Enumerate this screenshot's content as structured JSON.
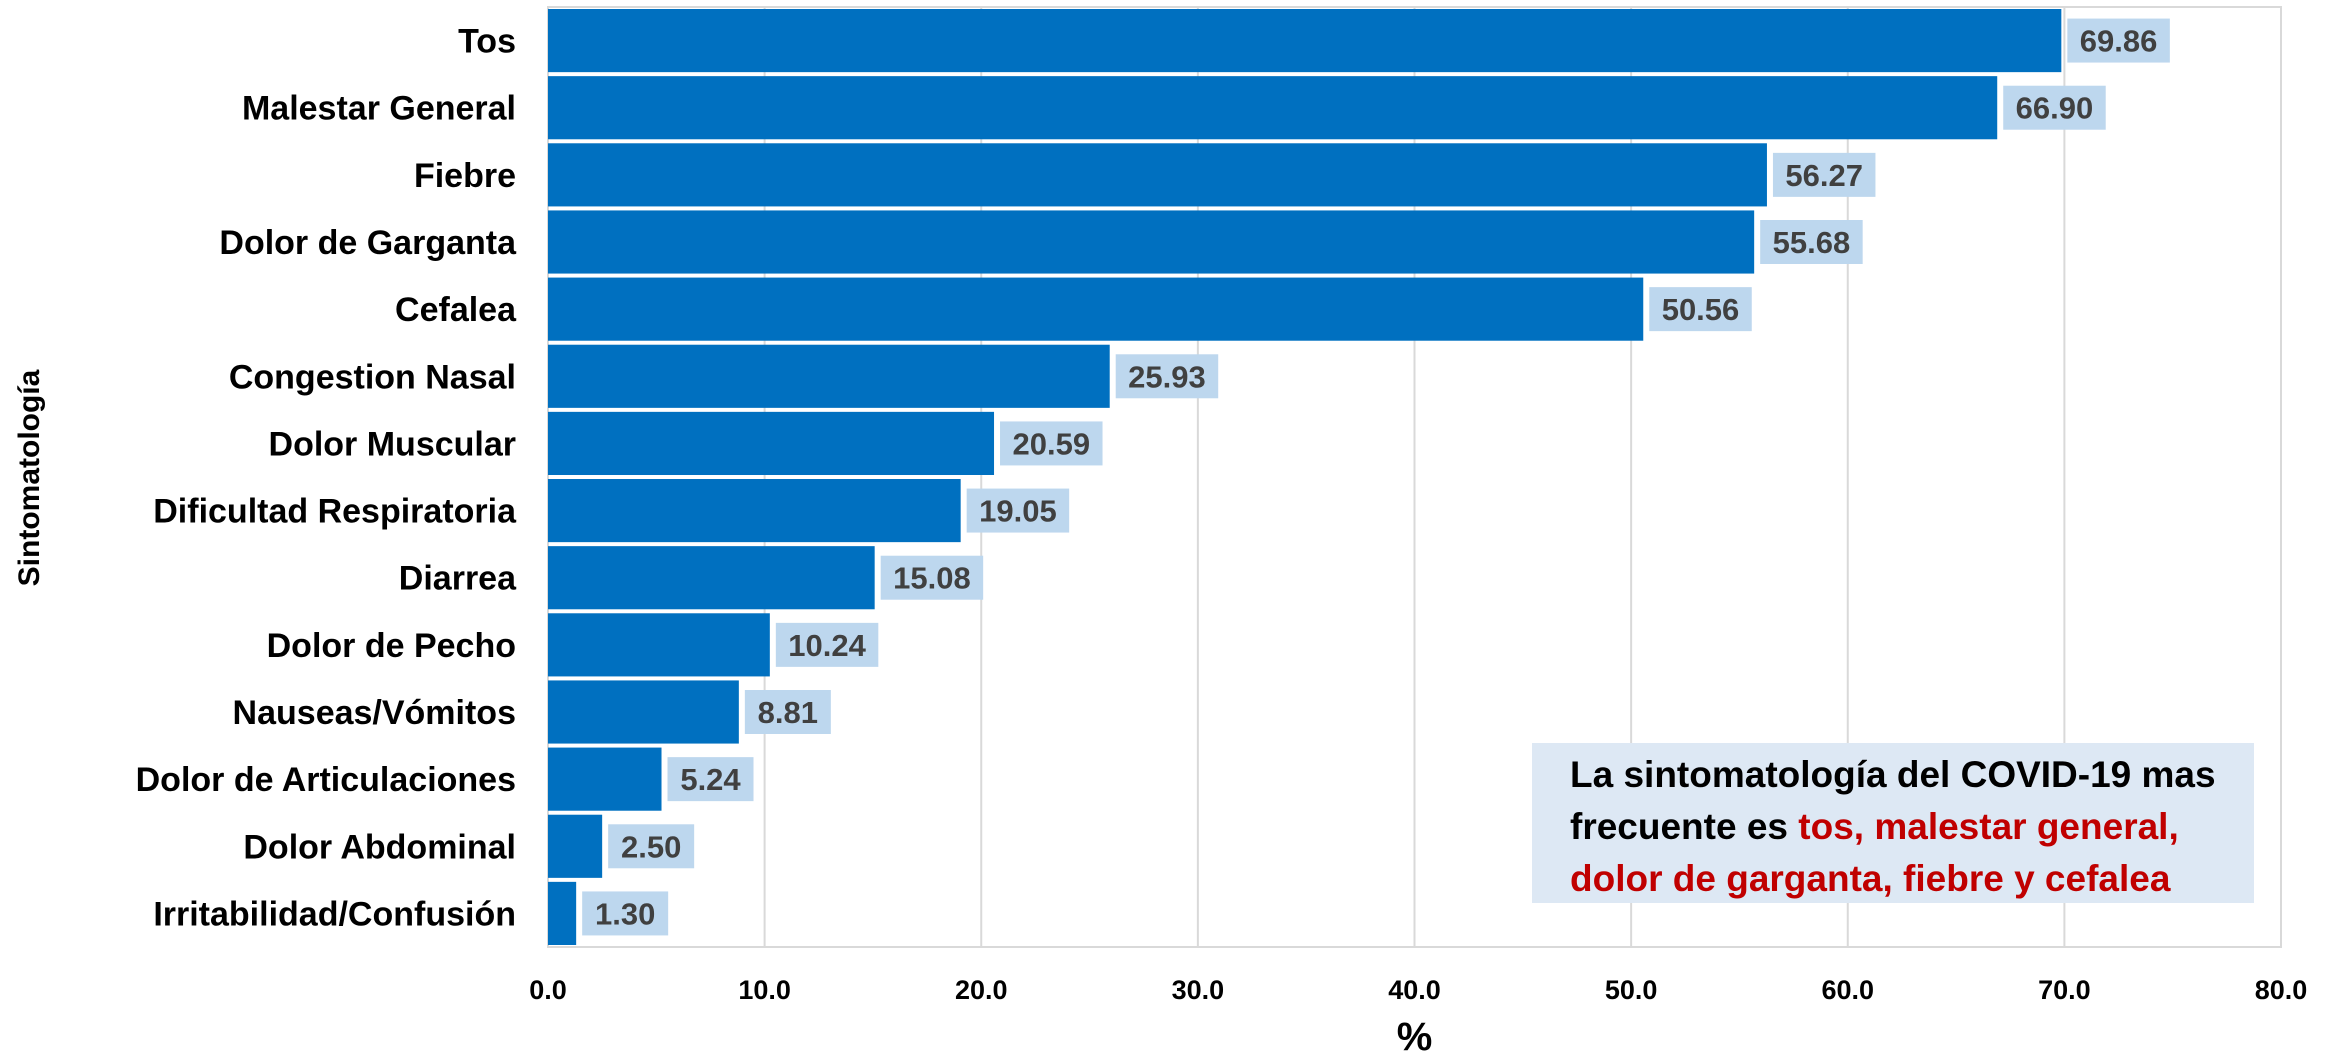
{
  "chart_data": {
    "type": "bar",
    "orientation": "horizontal",
    "categories": [
      "Tos",
      "Malestar General",
      "Fiebre",
      "Dolor de Garganta",
      "Cefalea",
      "Congestion Nasal",
      "Dolor Muscular",
      "Dificultad Respiratoria",
      "Diarrea",
      "Dolor de Pecho",
      "Nauseas/Vómitos",
      "Dolor de Articulaciones",
      "Dolor Abdominal",
      "Irritabilidad/Confusión"
    ],
    "values": [
      69.86,
      66.9,
      56.27,
      55.68,
      50.56,
      25.93,
      20.59,
      19.05,
      15.08,
      10.24,
      8.81,
      5.24,
      2.5,
      1.3
    ],
    "value_labels": [
      "69.86",
      "66.90",
      "56.27",
      "55.68",
      "50.56",
      "25.93",
      "20.59",
      "19.05",
      "15.08",
      "10.24",
      "8.81",
      "5.24",
      "2.50",
      "1.30"
    ],
    "xlim": [
      0,
      80
    ],
    "xticks": [
      "0.0",
      "10.0",
      "20.0",
      "30.0",
      "40.0",
      "50.0",
      "60.0",
      "70.0",
      "80.0"
    ],
    "xlabel": "%",
    "ylabel": "Sintomatología",
    "grid": "vertical",
    "bar_color": "#0070c0",
    "label_bg_color": "#bdd7ee",
    "label_text_color": "#404040"
  },
  "annotation": {
    "line1": "La sintomatología del COVID-19 mas",
    "line2_prefix": "frecuente es ",
    "line2_highlight": "tos, malestar general,",
    "line3_highlight": "dolor de garganta, fiebre y cefalea",
    "highlight_color": "#c00000",
    "background_color": "#dde8f4"
  }
}
